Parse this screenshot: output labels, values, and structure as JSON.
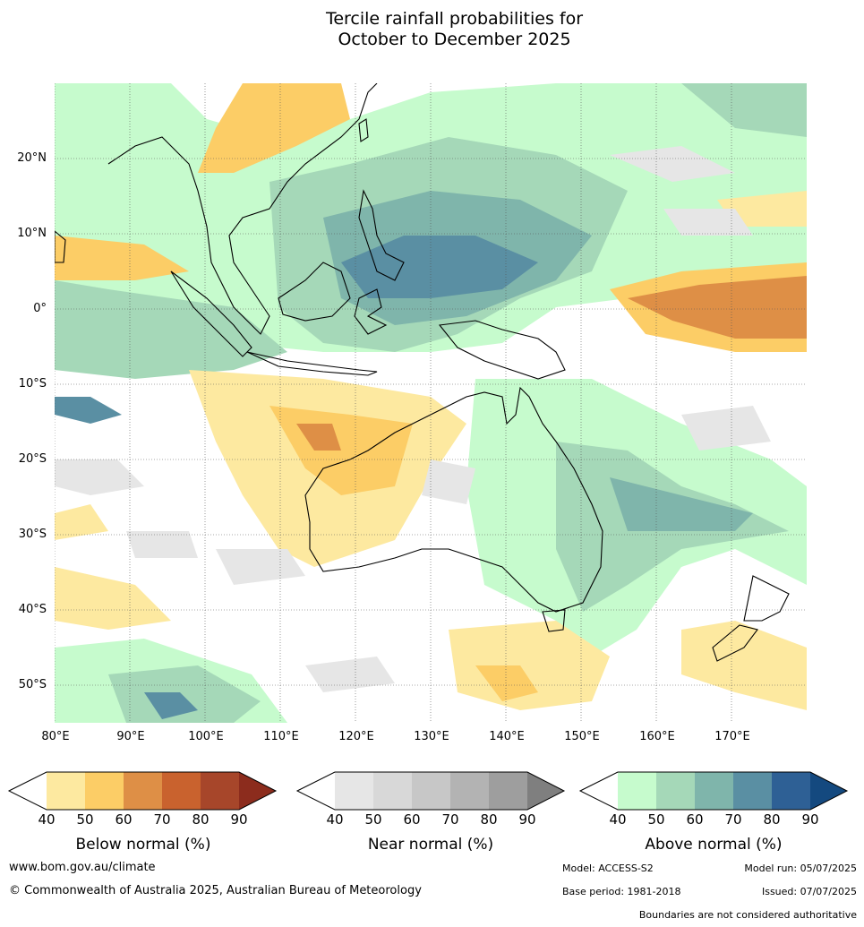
{
  "title_line1": "Tercile rainfall probabilities for",
  "title_line2": "October to December 2025",
  "map": {
    "lon_range": [
      80,
      180
    ],
    "lat_range": [
      -55,
      30
    ],
    "lat_labels": [
      "20°N",
      "10°N",
      "0°",
      "10°S",
      "20°S",
      "30°S",
      "40°S",
      "50°S"
    ],
    "lon_labels": [
      "80°E",
      "90°E",
      "100°E",
      "110°E",
      "120°E",
      "130°E",
      "140°E",
      "150°E",
      "160°E",
      "170°E"
    ],
    "gridlines": true
  },
  "legends": [
    {
      "title": "Below normal (%)",
      "ticks": [
        "40",
        "50",
        "60",
        "70",
        "80",
        "90"
      ],
      "colors": [
        "#ffffff",
        "#fde9a0",
        "#fccd66",
        "#de8f46",
        "#c9622e",
        "#a7462a",
        "#8c2c1d"
      ]
    },
    {
      "title": "Near normal (%)",
      "ticks": [
        "40",
        "50",
        "60",
        "70",
        "80",
        "90"
      ],
      "colors": [
        "#ffffff",
        "#e6e6e6",
        "#d8d8d8",
        "#c7c7c7",
        "#b3b3b3",
        "#9e9e9e",
        "#7f7f7f"
      ]
    },
    {
      "title": "Above normal (%)",
      "ticks": [
        "40",
        "50",
        "60",
        "70",
        "80",
        "90"
      ],
      "colors": [
        "#ffffff",
        "#c6fbcd",
        "#a5d8b8",
        "#7fb5ab",
        "#5a8fa3",
        "#2e6095",
        "#14497f"
      ]
    }
  ],
  "footer": {
    "website": "www.bom.gov.au/climate",
    "copyright": "© Commonwealth of Australia 2025, Australian Bureau of Meteorology",
    "model": "Model: ACCESS-S2",
    "model_run": "Model run: 05/07/2025",
    "base_period": "Base period: 1981-2018",
    "issued": "Issued: 07/07/2025",
    "disclaimer": "Boundaries are not considered authoritative"
  }
}
